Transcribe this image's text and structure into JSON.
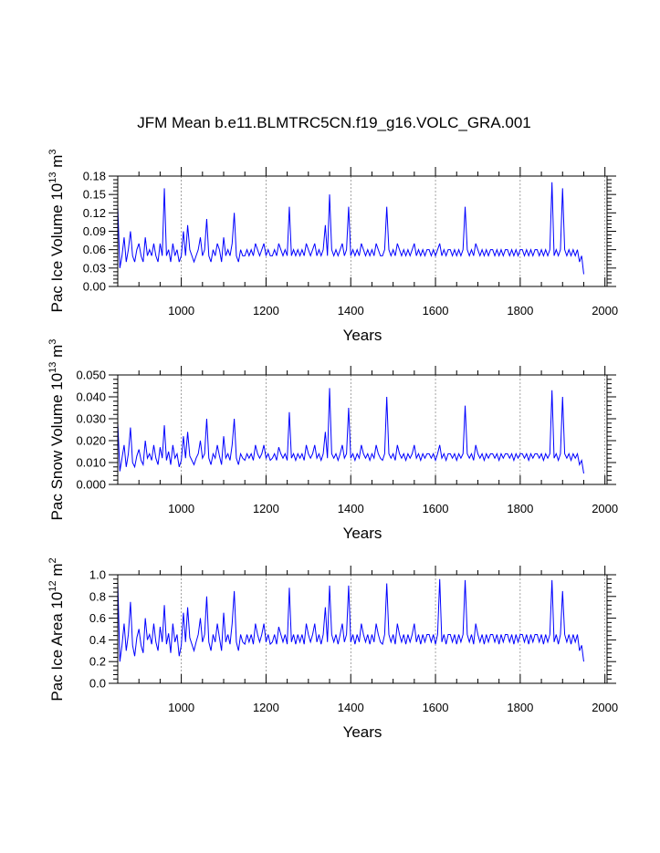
{
  "title": "JFM Mean b.e11.BLMTRC5CN.f19_g16.VOLC_GRA.001",
  "colors": {
    "series": "#0000ff"
  },
  "chart_data": [
    {
      "type": "line",
      "id": "ice-volume",
      "ylabel": {
        "main": "Pac Ice Volume 10",
        "exp": "13",
        "unit": " m",
        "unit_exp": "3"
      },
      "xlabel": "Years",
      "xlim": [
        850,
        2005
      ],
      "ylim": [
        0,
        0.18
      ],
      "xticks": [
        1000,
        1200,
        1400,
        1600,
        1800,
        2000
      ],
      "yticks": [
        "0.00",
        "0.03",
        "0.06",
        "0.09",
        "0.12",
        "0.15",
        "0.18"
      ],
      "grid": "vertical dashed at major x ticks",
      "series": [
        {
          "x_start": 850,
          "x_step": 5,
          "y": [
            0.13,
            0.03,
            0.05,
            0.08,
            0.04,
            0.06,
            0.09,
            0.05,
            0.04,
            0.06,
            0.07,
            0.05,
            0.04,
            0.08,
            0.05,
            0.06,
            0.05,
            0.07,
            0.05,
            0.04,
            0.07,
            0.05,
            0.16,
            0.05,
            0.06,
            0.04,
            0.07,
            0.05,
            0.06,
            0.04,
            0.05,
            0.09,
            0.05,
            0.1,
            0.06,
            0.05,
            0.04,
            0.05,
            0.06,
            0.08,
            0.05,
            0.06,
            0.11,
            0.05,
            0.04,
            0.06,
            0.05,
            0.07,
            0.06,
            0.04,
            0.08,
            0.05,
            0.06,
            0.05,
            0.07,
            0.12,
            0.05,
            0.04,
            0.06,
            0.05,
            0.05,
            0.06,
            0.05,
            0.06,
            0.05,
            0.07,
            0.06,
            0.05,
            0.06,
            0.07,
            0.05,
            0.06,
            0.05,
            0.05,
            0.06,
            0.05,
            0.07,
            0.06,
            0.05,
            0.06,
            0.05,
            0.13,
            0.05,
            0.06,
            0.05,
            0.06,
            0.05,
            0.06,
            0.05,
            0.07,
            0.06,
            0.05,
            0.06,
            0.07,
            0.05,
            0.06,
            0.05,
            0.06,
            0.1,
            0.05,
            0.15,
            0.06,
            0.05,
            0.06,
            0.05,
            0.06,
            0.07,
            0.05,
            0.06,
            0.13,
            0.05,
            0.06,
            0.05,
            0.06,
            0.05,
            0.07,
            0.06,
            0.05,
            0.06,
            0.05,
            0.06,
            0.05,
            0.07,
            0.06,
            0.05,
            0.05,
            0.06,
            0.13,
            0.06,
            0.05,
            0.06,
            0.05,
            0.07,
            0.06,
            0.05,
            0.06,
            0.05,
            0.06,
            0.05,
            0.06,
            0.07,
            0.05,
            0.06,
            0.05,
            0.06,
            0.05,
            0.06,
            0.06,
            0.05,
            0.06,
            0.05,
            0.06,
            0.07,
            0.05,
            0.06,
            0.05,
            0.06,
            0.06,
            0.05,
            0.06,
            0.05,
            0.06,
            0.05,
            0.06,
            0.13,
            0.06,
            0.05,
            0.06,
            0.05,
            0.07,
            0.06,
            0.05,
            0.06,
            0.05,
            0.06,
            0.05,
            0.06,
            0.06,
            0.05,
            0.06,
            0.05,
            0.06,
            0.05,
            0.06,
            0.06,
            0.05,
            0.06,
            0.05,
            0.06,
            0.05,
            0.06,
            0.06,
            0.05,
            0.06,
            0.05,
            0.06,
            0.05,
            0.06,
            0.06,
            0.05,
            0.06,
            0.05,
            0.06,
            0.05,
            0.06,
            0.17,
            0.05,
            0.06,
            0.05,
            0.06,
            0.16,
            0.06,
            0.05,
            0.06,
            0.05,
            0.06,
            0.05,
            0.06,
            0.04,
            0.05,
            0.02
          ]
        }
      ]
    },
    {
      "type": "line",
      "id": "snow-volume",
      "ylabel": {
        "main": "Pac Snow Volume 10",
        "exp": "13",
        "unit": " m",
        "unit_exp": "3"
      },
      "xlabel": "Years",
      "xlim": [
        850,
        2005
      ],
      "ylim": [
        0,
        0.05
      ],
      "xticks": [
        1000,
        1200,
        1400,
        1600,
        1800,
        2000
      ],
      "yticks": [
        "0.000",
        "0.010",
        "0.020",
        "0.030",
        "0.040",
        "0.050"
      ],
      "grid": "vertical dashed at major x ticks",
      "series": [
        {
          "x_start": 850,
          "x_step": 5,
          "y": [
            0.028,
            0.006,
            0.012,
            0.018,
            0.008,
            0.014,
            0.026,
            0.01,
            0.008,
            0.013,
            0.016,
            0.011,
            0.009,
            0.02,
            0.012,
            0.014,
            0.011,
            0.018,
            0.012,
            0.009,
            0.017,
            0.012,
            0.027,
            0.011,
            0.015,
            0.009,
            0.018,
            0.012,
            0.014,
            0.008,
            0.011,
            0.022,
            0.012,
            0.024,
            0.013,
            0.011,
            0.009,
            0.012,
            0.014,
            0.02,
            0.012,
            0.014,
            0.03,
            0.012,
            0.009,
            0.014,
            0.012,
            0.018,
            0.013,
            0.009,
            0.022,
            0.012,
            0.014,
            0.011,
            0.018,
            0.03,
            0.012,
            0.009,
            0.014,
            0.012,
            0.011,
            0.014,
            0.012,
            0.014,
            0.011,
            0.018,
            0.014,
            0.012,
            0.014,
            0.018,
            0.012,
            0.014,
            0.011,
            0.012,
            0.014,
            0.011,
            0.017,
            0.014,
            0.012,
            0.014,
            0.011,
            0.033,
            0.012,
            0.014,
            0.011,
            0.014,
            0.012,
            0.014,
            0.011,
            0.018,
            0.014,
            0.012,
            0.014,
            0.018,
            0.012,
            0.014,
            0.011,
            0.014,
            0.024,
            0.012,
            0.044,
            0.014,
            0.012,
            0.014,
            0.011,
            0.014,
            0.018,
            0.012,
            0.014,
            0.035,
            0.012,
            0.014,
            0.011,
            0.014,
            0.012,
            0.018,
            0.014,
            0.012,
            0.014,
            0.011,
            0.014,
            0.012,
            0.018,
            0.014,
            0.012,
            0.011,
            0.014,
            0.04,
            0.014,
            0.012,
            0.014,
            0.011,
            0.018,
            0.014,
            0.012,
            0.014,
            0.011,
            0.014,
            0.012,
            0.014,
            0.018,
            0.012,
            0.014,
            0.011,
            0.014,
            0.012,
            0.014,
            0.014,
            0.012,
            0.014,
            0.011,
            0.014,
            0.018,
            0.012,
            0.014,
            0.011,
            0.014,
            0.014,
            0.012,
            0.014,
            0.011,
            0.014,
            0.012,
            0.014,
            0.036,
            0.014,
            0.012,
            0.014,
            0.011,
            0.018,
            0.014,
            0.012,
            0.014,
            0.011,
            0.014,
            0.012,
            0.014,
            0.014,
            0.012,
            0.014,
            0.011,
            0.014,
            0.012,
            0.014,
            0.014,
            0.012,
            0.014,
            0.011,
            0.014,
            0.012,
            0.014,
            0.014,
            0.012,
            0.014,
            0.011,
            0.014,
            0.012,
            0.014,
            0.014,
            0.012,
            0.014,
            0.011,
            0.014,
            0.012,
            0.014,
            0.043,
            0.012,
            0.014,
            0.011,
            0.014,
            0.04,
            0.014,
            0.012,
            0.014,
            0.011,
            0.014,
            0.012,
            0.014,
            0.009,
            0.011,
            0.005
          ]
        }
      ]
    },
    {
      "type": "line",
      "id": "ice-area",
      "ylabel": {
        "main": "Pac Ice Area 10",
        "exp": "12",
        "unit": " m",
        "unit_exp": "2"
      },
      "xlabel": "Years",
      "xlim": [
        850,
        2005
      ],
      "ylim": [
        0,
        1.0
      ],
      "xticks": [
        1000,
        1200,
        1400,
        1600,
        1800,
        2000
      ],
      "yticks": [
        "0.0",
        "0.2",
        "0.4",
        "0.6",
        "0.8",
        "1.0"
      ],
      "grid": "vertical dashed at major x ticks",
      "series": [
        {
          "x_start": 850,
          "x_step": 5,
          "y": [
            0.93,
            0.2,
            0.35,
            0.55,
            0.3,
            0.45,
            0.75,
            0.35,
            0.25,
            0.42,
            0.5,
            0.35,
            0.28,
            0.6,
            0.4,
            0.45,
            0.36,
            0.55,
            0.38,
            0.3,
            0.52,
            0.38,
            0.72,
            0.36,
            0.46,
            0.28,
            0.55,
            0.38,
            0.45,
            0.25,
            0.35,
            0.65,
            0.38,
            0.7,
            0.42,
            0.36,
            0.3,
            0.38,
            0.45,
            0.6,
            0.38,
            0.45,
            0.8,
            0.38,
            0.3,
            0.45,
            0.38,
            0.55,
            0.42,
            0.3,
            0.65,
            0.38,
            0.45,
            0.36,
            0.55,
            0.85,
            0.38,
            0.3,
            0.45,
            0.38,
            0.36,
            0.45,
            0.38,
            0.45,
            0.36,
            0.55,
            0.45,
            0.38,
            0.45,
            0.55,
            0.38,
            0.45,
            0.36,
            0.38,
            0.45,
            0.36,
            0.52,
            0.45,
            0.38,
            0.45,
            0.36,
            0.88,
            0.38,
            0.45,
            0.36,
            0.45,
            0.38,
            0.45,
            0.36,
            0.55,
            0.45,
            0.38,
            0.45,
            0.55,
            0.38,
            0.45,
            0.36,
            0.45,
            0.7,
            0.38,
            0.9,
            0.45,
            0.38,
            0.45,
            0.36,
            0.45,
            0.55,
            0.38,
            0.45,
            0.9,
            0.38,
            0.45,
            0.36,
            0.45,
            0.38,
            0.55,
            0.45,
            0.38,
            0.45,
            0.36,
            0.45,
            0.38,
            0.55,
            0.45,
            0.38,
            0.36,
            0.45,
            0.92,
            0.45,
            0.38,
            0.45,
            0.36,
            0.55,
            0.45,
            0.38,
            0.45,
            0.36,
            0.45,
            0.38,
            0.45,
            0.55,
            0.38,
            0.45,
            0.36,
            0.45,
            0.38,
            0.45,
            0.45,
            0.38,
            0.45,
            0.36,
            0.45,
            0.96,
            0.38,
            0.45,
            0.36,
            0.45,
            0.45,
            0.38,
            0.45,
            0.36,
            0.45,
            0.38,
            0.45,
            0.95,
            0.45,
            0.38,
            0.45,
            0.36,
            0.55,
            0.45,
            0.38,
            0.45,
            0.36,
            0.45,
            0.38,
            0.45,
            0.45,
            0.38,
            0.45,
            0.36,
            0.45,
            0.38,
            0.45,
            0.45,
            0.38,
            0.45,
            0.36,
            0.45,
            0.38,
            0.45,
            0.45,
            0.38,
            0.45,
            0.36,
            0.45,
            0.38,
            0.45,
            0.45,
            0.38,
            0.45,
            0.36,
            0.45,
            0.38,
            0.45,
            0.95,
            0.38,
            0.45,
            0.36,
            0.45,
            0.85,
            0.45,
            0.38,
            0.45,
            0.36,
            0.45,
            0.38,
            0.45,
            0.3,
            0.35,
            0.2
          ]
        }
      ]
    }
  ]
}
